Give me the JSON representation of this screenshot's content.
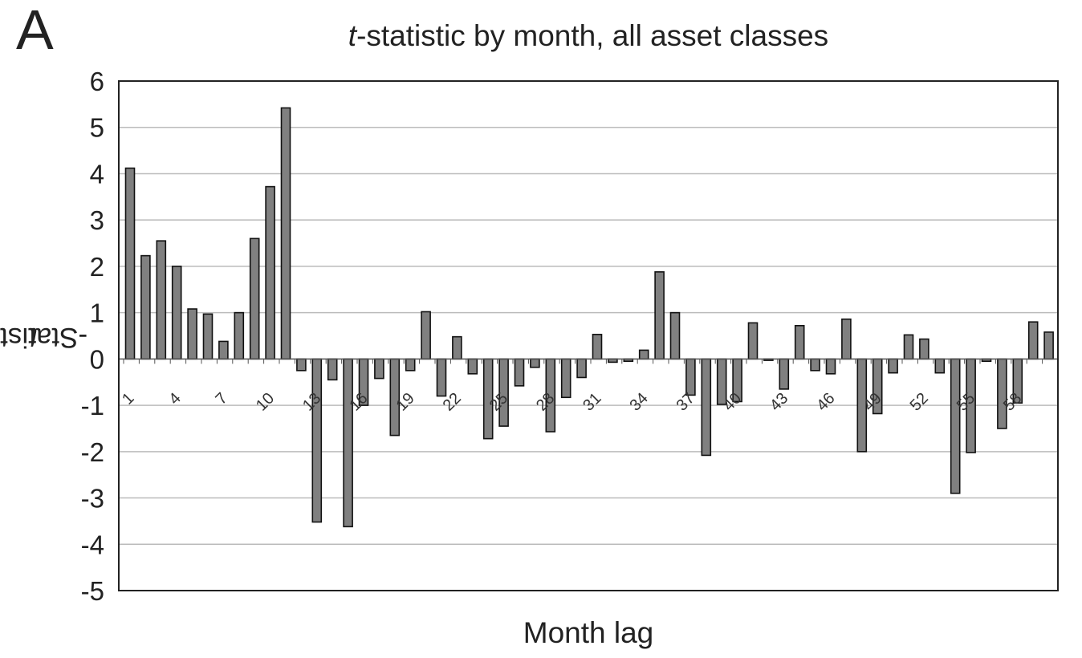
{
  "panel_letter": "A",
  "chart_data": {
    "type": "bar",
    "title_prefix_italic": "t",
    "title_rest": "-statistic by month, all asset classes",
    "ylabel_prefix_italic": "t",
    "ylabel_rest": "-Statistic",
    "xlabel": "Month lag",
    "ylim": [
      -5,
      6
    ],
    "yticks": [
      6,
      5,
      4,
      3,
      2,
      1,
      0,
      -1,
      -2,
      -3,
      -4,
      -5
    ],
    "grid": true,
    "categories": [
      1,
      2,
      3,
      4,
      5,
      6,
      7,
      8,
      9,
      10,
      11,
      12,
      13,
      14,
      15,
      16,
      17,
      18,
      19,
      20,
      21,
      22,
      23,
      24,
      25,
      26,
      27,
      28,
      29,
      30,
      31,
      32,
      33,
      34,
      35,
      36,
      37,
      38,
      39,
      40,
      41,
      42,
      43,
      44,
      45,
      46,
      47,
      48,
      49,
      50,
      51,
      52,
      53,
      54,
      55,
      56,
      57,
      58,
      59,
      60
    ],
    "xtick_labels": [
      "1",
      "4",
      "7",
      "10",
      "13",
      "16",
      "19",
      "22",
      "25",
      "28",
      "31",
      "34",
      "37",
      "40",
      "43",
      "46",
      "49",
      "52",
      "55",
      "58"
    ],
    "values": [
      4.12,
      2.23,
      2.55,
      2.0,
      1.08,
      0.97,
      0.38,
      1.0,
      2.6,
      3.72,
      5.42,
      -0.25,
      -3.52,
      -0.45,
      -3.62,
      -1.0,
      -0.42,
      -1.65,
      -0.25,
      1.02,
      -0.8,
      0.48,
      -0.32,
      -1.72,
      -1.45,
      -0.58,
      -0.18,
      -1.57,
      -0.83,
      -0.4,
      0.53,
      -0.07,
      -0.05,
      0.19,
      1.88,
      1.0,
      -0.78,
      -2.08,
      -0.98,
      -0.92,
      0.78,
      -0.03,
      -0.65,
      0.72,
      -0.25,
      -0.32,
      0.86,
      -2.0,
      -1.18,
      -0.3,
      0.52,
      0.43,
      -0.3,
      -2.9,
      -2.02,
      -0.05,
      -1.5,
      -0.95,
      0.8,
      0.58
    ],
    "bar_color": "#808080",
    "bar_edge_color": "#111111",
    "grid_color": "#bbbbbb"
  }
}
